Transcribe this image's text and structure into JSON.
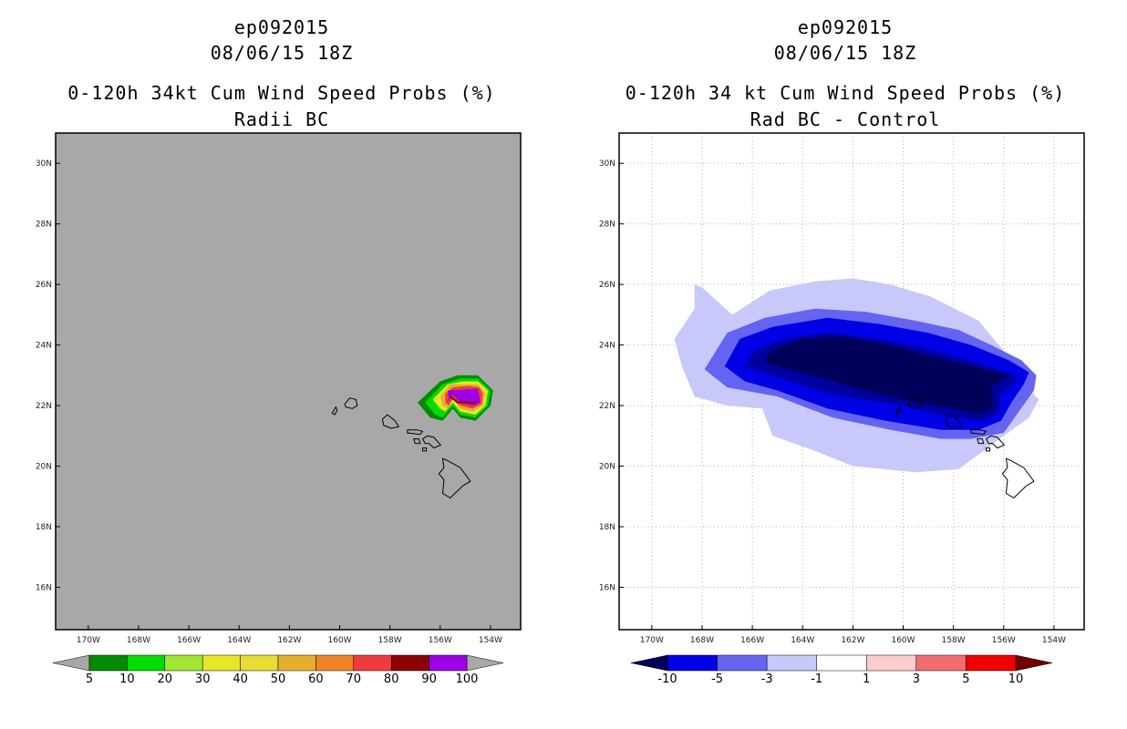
{
  "chart_data": [
    {
      "type": "contour-map",
      "title_lines": [
        "ep092015",
        "08/06/15 18Z",
        "0-120h 34kt Cum Wind Speed Probs (%)",
        "Radii BC"
      ],
      "x_ticks": [
        "170W",
        "168W",
        "166W",
        "164W",
        "162W",
        "160W",
        "158W",
        "156W",
        "154W"
      ],
      "x_values": [
        -170,
        -168,
        -166,
        -164,
        -162,
        -160,
        -158,
        -156,
        -154
      ],
      "y_ticks": [
        "16N",
        "18N",
        "20N",
        "22N",
        "24N",
        "26N",
        "28N",
        "30N"
      ],
      "y_values": [
        16,
        18,
        20,
        22,
        24,
        26,
        28,
        30
      ],
      "xlim": [
        -171.3,
        -152.8
      ],
      "ylim": [
        14.6,
        31.0
      ],
      "grid": false,
      "background": "#a8a8a8",
      "colorbar": {
        "labels": [
          "5",
          "10",
          "20",
          "30",
          "40",
          "50",
          "60",
          "70",
          "80",
          "90",
          "100"
        ],
        "colors": [
          "#008c00",
          "#00dc00",
          "#a0e632",
          "#e6e628",
          "#e6dc32",
          "#e6af2d",
          "#f08228",
          "#f03c3c",
          "#8c0000",
          "#9b00e6"
        ],
        "arrow_colors": [
          "#a8a8a8",
          "#a8a8a8"
        ]
      },
      "features": [
        {
          "name": "cumulative wind speed probability blob",
          "center_lon": -155.3,
          "center_lat": 22.2,
          "max_value": 100
        }
      ]
    },
    {
      "type": "contour-map",
      "title_lines": [
        "ep092015",
        "08/06/15 18Z",
        "0-120h 34 kt Cum Wind Speed Probs (%)",
        "Rad BC - Control"
      ],
      "x_ticks": [
        "170W",
        "168W",
        "166W",
        "164W",
        "162W",
        "160W",
        "158W",
        "156W",
        "154W"
      ],
      "x_values": [
        -170,
        -168,
        -166,
        -164,
        -162,
        -160,
        -158,
        -156,
        -154
      ],
      "y_ticks": [
        "16N",
        "18N",
        "20N",
        "22N",
        "24N",
        "26N",
        "28N",
        "30N"
      ],
      "y_values": [
        16,
        18,
        20,
        22,
        24,
        26,
        28,
        30
      ],
      "xlim": [
        -171.3,
        -152.8
      ],
      "ylim": [
        14.6,
        31.0
      ],
      "grid": true,
      "background": "#ffffff",
      "colorbar": {
        "labels": [
          "-10",
          "-5",
          "-3",
          "-1",
          "1",
          "3",
          "5",
          "10"
        ],
        "colors": [
          "#0000e6",
          "#6464f0",
          "#c8c8fa",
          "#ffffff",
          "#facccc",
          "#f06e6e",
          "#f00000"
        ],
        "arrow_colors": [
          "#00005a",
          "#6e0000"
        ]
      },
      "features": [
        {
          "name": "difference field",
          "min_value": -10,
          "center_lon": -160.5,
          "center_lat": 22.8
        }
      ]
    }
  ]
}
